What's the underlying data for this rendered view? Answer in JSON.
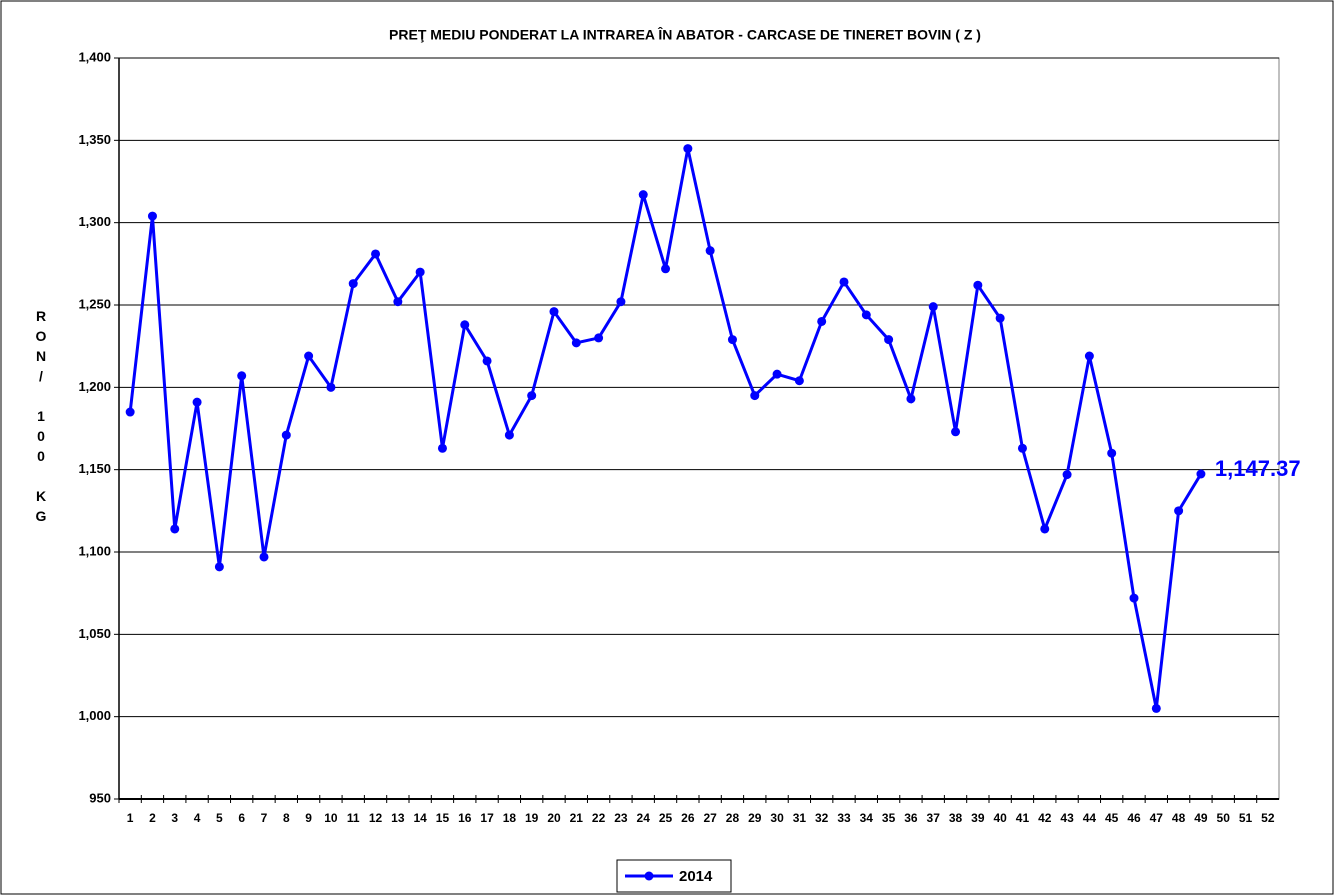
{
  "chart_data": {
    "type": "line",
    "title": "PREŢ MEDIU PONDERAT LA INTRAREA ÎN ABATOR - CARCASE DE TINERET BOVIN ( Z )",
    "y_label": "RON/ 100 KG",
    "categories": [
      "1",
      "2",
      "3",
      "4",
      "5",
      "6",
      "7",
      "8",
      "9",
      "10",
      "11",
      "12",
      "13",
      "14",
      "15",
      "16",
      "17",
      "18",
      "19",
      "20",
      "21",
      "22",
      "23",
      "24",
      "25",
      "26",
      "27",
      "28",
      "29",
      "30",
      "31",
      "32",
      "33",
      "34",
      "35",
      "36",
      "37",
      "38",
      "39",
      "40",
      "41",
      "42",
      "43",
      "44",
      "45",
      "46",
      "47",
      "48",
      "49",
      "50",
      "51",
      "52"
    ],
    "series": [
      {
        "name": "2014",
        "color": "#0000ff",
        "values": [
          1185,
          1304,
          1114,
          1191,
          1091,
          1207,
          1097,
          1171,
          1219,
          1200,
          1263,
          1281,
          1252,
          1270,
          1163,
          1238,
          1216,
          1171,
          1195,
          1246,
          1227,
          1230,
          1252,
          1317,
          1272,
          1345,
          1283,
          1229,
          1195,
          1208,
          1204,
          1240,
          1264,
          1244,
          1229,
          1193,
          1249,
          1173,
          1262,
          1242,
          1163,
          1114,
          1147,
          1219,
          1160,
          1072,
          1005,
          1125,
          1147.37,
          null,
          null,
          null
        ],
        "value_labels": [
          null,
          null,
          null,
          null,
          null,
          null,
          null,
          null,
          null,
          null,
          null,
          null,
          null,
          null,
          null,
          null,
          null,
          null,
          null,
          null,
          null,
          null,
          null,
          null,
          null,
          null,
          null,
          null,
          null,
          null,
          null,
          null,
          null,
          null,
          null,
          null,
          null,
          null,
          null,
          null,
          null,
          null,
          null,
          null,
          null,
          null,
          null,
          null,
          "1,147.37",
          null,
          null,
          null
        ]
      }
    ],
    "ylim": [
      950,
      1400
    ],
    "yticks": [
      {
        "value": 950,
        "label": "950"
      },
      {
        "value": 1000,
        "label": "1,000"
      },
      {
        "value": 1050,
        "label": "1,050"
      },
      {
        "value": 1100,
        "label": "1,100"
      },
      {
        "value": 1150,
        "label": "1,150"
      },
      {
        "value": 1200,
        "label": "1,200"
      },
      {
        "value": 1250,
        "label": "1,250"
      },
      {
        "value": 1300,
        "label": "1,300"
      },
      {
        "value": 1350,
        "label": "1,350"
      },
      {
        "value": 1400,
        "label": "1,400"
      }
    ],
    "grid": true,
    "legend": "bottom"
  }
}
